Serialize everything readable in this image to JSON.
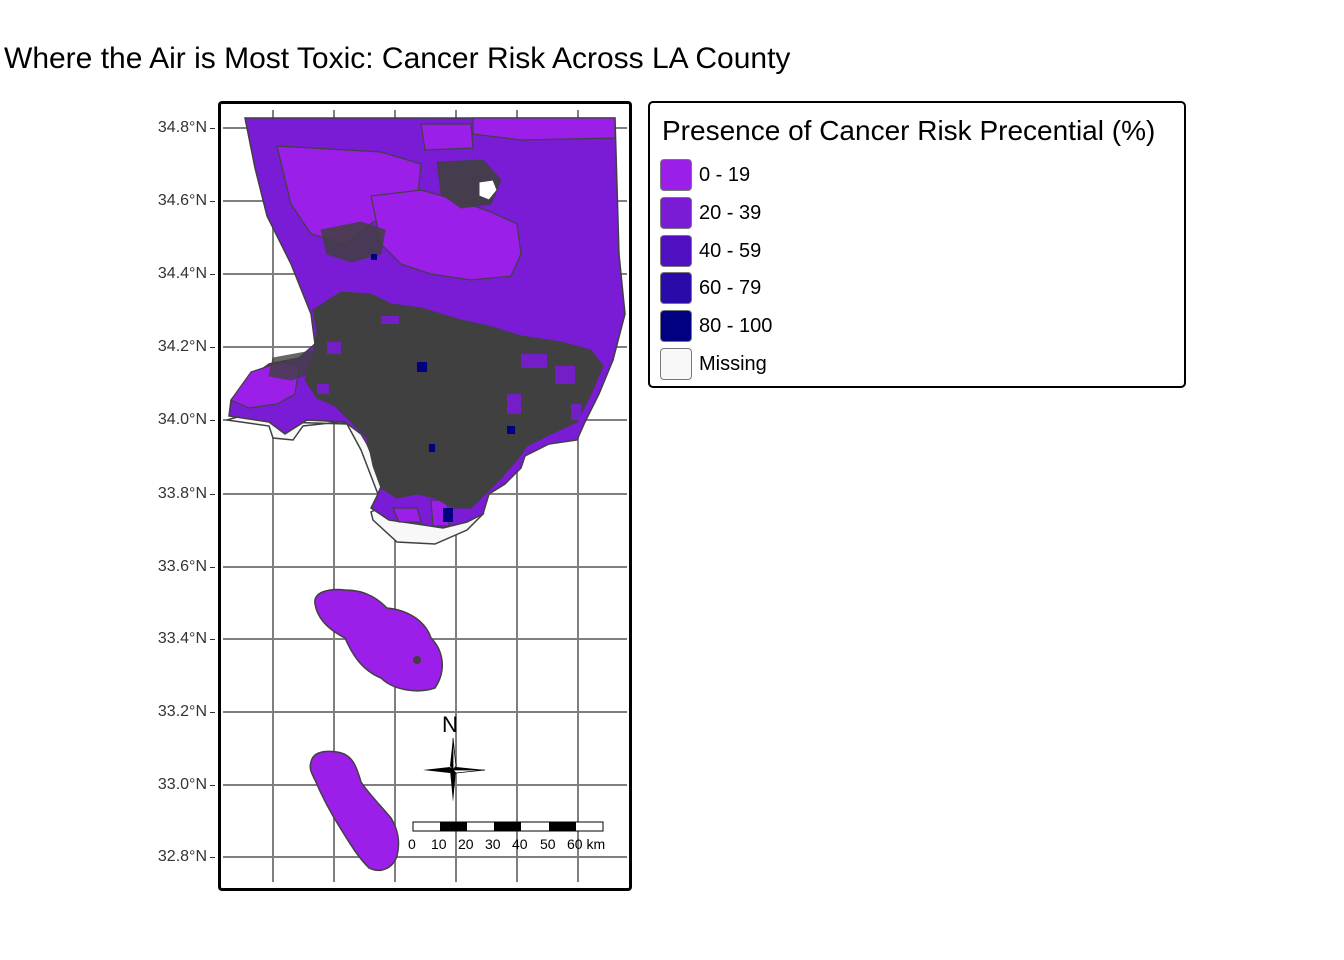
{
  "title": "Where the Air is Most Toxic: Cancer Risk Across LA County",
  "y_axis": {
    "ticks": [
      "34.8°N",
      "34.6°N",
      "34.4°N",
      "34.2°N",
      "34.0°N",
      "33.8°N",
      "33.6°N",
      "33.4°N",
      "33.2°N",
      "33.0°N",
      "32.8°N"
    ]
  },
  "legend": {
    "title": "Presence of Cancer Risk Precential (%)",
    "items": [
      {
        "label": "0 - 19",
        "color": "#9b1fe8"
      },
      {
        "label": "20 - 39",
        "color": "#7a1bd6"
      },
      {
        "label": "40 - 59",
        "color": "#5010c2"
      },
      {
        "label": "60 - 79",
        "color": "#2a0aa8"
      },
      {
        "label": "80 - 100",
        "color": "#000080"
      },
      {
        "label": "Missing",
        "color": "#f8f8f8"
      }
    ]
  },
  "compass": {
    "label": "N"
  },
  "scale_bar": {
    "labels": [
      "0",
      "10",
      "20",
      "30",
      "40",
      "50",
      "60 km"
    ]
  },
  "colors": {
    "border": "#404040",
    "grid": "#7f7f7f"
  }
}
